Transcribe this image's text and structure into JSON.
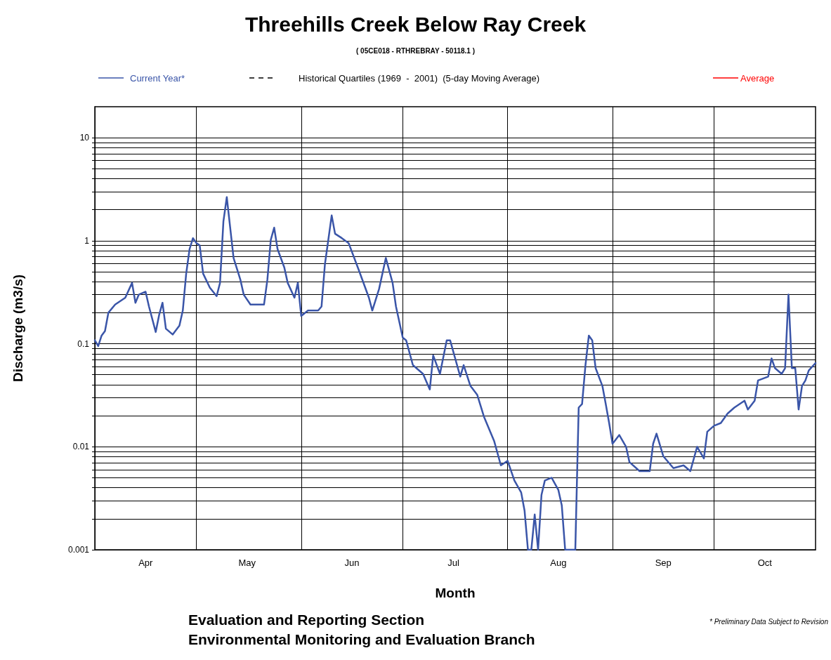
{
  "chart_data": {
    "type": "line",
    "title": "Threehills Creek Below Ray Creek",
    "subtitle": "( 05CE018 - RTHREBRAY - 50118.1 )",
    "xlabel": "Month",
    "ylabel": "Discharge (m3/s)",
    "annotations": [
      "Evaluation and Reporting Section",
      "Environmental Monitoring and Evaluation Branch",
      "* Preliminary Data Subject to Revision"
    ],
    "log": "y",
    "grid": true,
    "legend": "top",
    "marker": "none",
    "xlim": [
      "--04-01",
      "--10-31"
    ],
    "xticks": [
      {
        "value": "--04-01",
        "label": null
      },
      {
        "value": "--04-16",
        "label": "Apr"
      },
      {
        "value": "--05-01",
        "label": null
      },
      {
        "value": "--05-16",
        "label": "May"
      },
      {
        "value": "--06-01",
        "label": null
      },
      {
        "value": "--06-16",
        "label": "Jun"
      },
      {
        "value": "--07-01",
        "label": null
      },
      {
        "value": "--07-16",
        "label": "Jul"
      },
      {
        "value": "--08-01",
        "label": null
      },
      {
        "value": "--08-16",
        "label": "Aug"
      },
      {
        "value": "--09-01",
        "label": null
      },
      {
        "value": "--09-16",
        "label": "Sep"
      },
      {
        "value": "--10-01",
        "label": null
      },
      {
        "value": "--10-16",
        "label": "Oct"
      }
    ],
    "ylim": [
      0.001,
      20
    ],
    "yticks": [
      0.001,
      {
        "value": 0.002,
        "label": null
      },
      {
        "value": 0.003,
        "label": null
      },
      {
        "value": 0.004,
        "label": null
      },
      {
        "value": 0.005,
        "label": null
      },
      {
        "value": 0.006,
        "label": null
      },
      {
        "value": 0.007,
        "label": null
      },
      {
        "value": 0.008,
        "label": null
      },
      {
        "value": 0.009,
        "label": null
      },
      0.01,
      {
        "value": 0.02,
        "label": null
      },
      {
        "value": 0.03,
        "label": null
      },
      {
        "value": 0.04,
        "label": null
      },
      {
        "value": 0.05,
        "label": null
      },
      {
        "value": 0.06,
        "label": null
      },
      {
        "value": 0.07,
        "label": null
      },
      {
        "value": 0.08,
        "label": null
      },
      {
        "value": 0.09,
        "label": null
      },
      0.1,
      {
        "value": 0.2,
        "label": null
      },
      {
        "value": 0.3,
        "label": null
      },
      {
        "value": 0.4,
        "label": null
      },
      {
        "value": 0.5,
        "label": null
      },
      {
        "value": 0.6,
        "label": null
      },
      {
        "value": 0.7,
        "label": null
      },
      {
        "value": 0.8,
        "label": null
      },
      {
        "value": 0.9,
        "label": null
      },
      1,
      {
        "value": 2,
        "label": null
      },
      {
        "value": 3,
        "label": null
      },
      {
        "value": 4,
        "label": null
      },
      {
        "value": 5,
        "label": null
      },
      {
        "value": 6,
        "label": null
      },
      {
        "value": 7,
        "label": null
      },
      {
        "value": 8,
        "label": null
      },
      {
        "value": 9,
        "label": null
      },
      10
    ],
    "series": [
      {
        "name": "Current Year*",
        "color": "#3a55a8",
        "line_style": "solid",
        "x": [
          "--04-01",
          "--04-02",
          "--04-03",
          "--04-04",
          "--04-05",
          "--04-07",
          "--04-10",
          "--04-12",
          "--04-13",
          "--04-14",
          "--04-16",
          "--04-17",
          "--04-19",
          "--04-20",
          "--04-21",
          "--04-22",
          "--04-24",
          "--04-26",
          "--04-27",
          "--04-28",
          "--04-29",
          "--04-30",
          "--05-01",
          "--05-02",
          "--05-03",
          "--05-05",
          "--05-07",
          "--05-08",
          "--05-09",
          "--05-10",
          "--05-11",
          "--05-12",
          "--05-14",
          "--05-15",
          "--05-17",
          "--05-21",
          "--05-22",
          "--05-23",
          "--05-24",
          "--05-25",
          "--05-27",
          "--05-28",
          "--05-30",
          "--05-31",
          "--06-01",
          "--06-03",
          "--06-06",
          "--06-07",
          "--06-08",
          "--06-10",
          "--06-11",
          "--06-13",
          "--06-15",
          "--06-18",
          "--06-21",
          "--06-22",
          "--06-24",
          "--06-26",
          "--06-28",
          "--06-29",
          "--07-01",
          "--07-02",
          "--07-04",
          "--07-07",
          "--07-09",
          "--07-10",
          "--07-12",
          "--07-14",
          "--07-15",
          "--07-18",
          "--07-19",
          "--07-21",
          "--07-23",
          "--07-25",
          "--07-28",
          "--07-30",
          "--08-01",
          "--08-03",
          "--08-05",
          "--08-06",
          "--08-07",
          "--08-08",
          "--08-09",
          "--08-10",
          "--08-11",
          "--08-12",
          "--08-14",
          "--08-16",
          "--08-17",
          "--08-18",
          "--08-21",
          "--08-22",
          "--08-23",
          "--08-24",
          "--08-25",
          "--08-26",
          "--08-27",
          "--08-29",
          "--08-30",
          "--08-31",
          "--09-01",
          "--09-03",
          "--09-05",
          "--09-06",
          "--09-09",
          "--09-12",
          "--09-13",
          "--09-14",
          "--09-16",
          "--09-19",
          "--09-22",
          "--09-24",
          "--09-26",
          "--09-28",
          "--09-29",
          "--10-01",
          "--10-03",
          "--10-05",
          "--10-07",
          "--10-10",
          "--10-11",
          "--10-13",
          "--10-14",
          "--10-17",
          "--10-18",
          "--10-19",
          "--10-21",
          "--10-22",
          "--10-23",
          "--10-24",
          "--10-25",
          "--10-26",
          "--10-27",
          "--10-28",
          "--10-29",
          "--10-31"
        ],
        "values": [
          0.108,
          0.095,
          0.12,
          0.133,
          0.2,
          0.24,
          0.28,
          0.39,
          0.25,
          0.3,
          0.32,
          0.23,
          0.13,
          0.19,
          0.25,
          0.14,
          0.123,
          0.15,
          0.21,
          0.48,
          0.83,
          1.06,
          0.95,
          0.9,
          0.48,
          0.35,
          0.29,
          0.39,
          1.54,
          2.65,
          1.34,
          0.68,
          0.42,
          0.3,
          0.24,
          0.24,
          0.42,
          1.02,
          1.34,
          0.83,
          0.55,
          0.39,
          0.28,
          0.39,
          0.186,
          0.21,
          0.21,
          0.23,
          0.59,
          1.76,
          1.17,
          1.06,
          0.95,
          0.52,
          0.28,
          0.21,
          0.34,
          0.68,
          0.39,
          0.23,
          0.115,
          0.108,
          0.062,
          0.051,
          0.036,
          0.077,
          0.051,
          0.108,
          0.108,
          0.048,
          0.062,
          0.039,
          0.032,
          0.0196,
          0.0114,
          0.0066,
          0.0073,
          0.0047,
          0.0036,
          0.0024,
          0.001,
          0.001,
          0.0022,
          0.001,
          0.0034,
          0.0047,
          0.005,
          0.0038,
          0.0027,
          0.001,
          0.001,
          0.024,
          0.026,
          0.062,
          0.12,
          0.108,
          0.058,
          0.039,
          0.026,
          0.017,
          0.0107,
          0.013,
          0.01,
          0.0071,
          0.0058,
          0.0058,
          0.0107,
          0.0134,
          0.0081,
          0.0062,
          0.0066,
          0.0058,
          0.01,
          0.0077,
          0.014,
          0.016,
          0.017,
          0.021,
          0.024,
          0.028,
          0.023,
          0.028,
          0.044,
          0.048,
          0.072,
          0.058,
          0.051,
          0.058,
          0.3,
          0.058,
          0.058,
          0.023,
          0.039,
          0.044,
          0.055,
          0.065
        ]
      },
      {
        "name": "Historical Quartiles (1969  -  2001)  (5-day Moving Average)",
        "color": "#000000",
        "line_style": "dashed"
      },
      {
        "name": "Average",
        "color": "#ff0000",
        "line_style": "solid"
      }
    ]
  }
}
